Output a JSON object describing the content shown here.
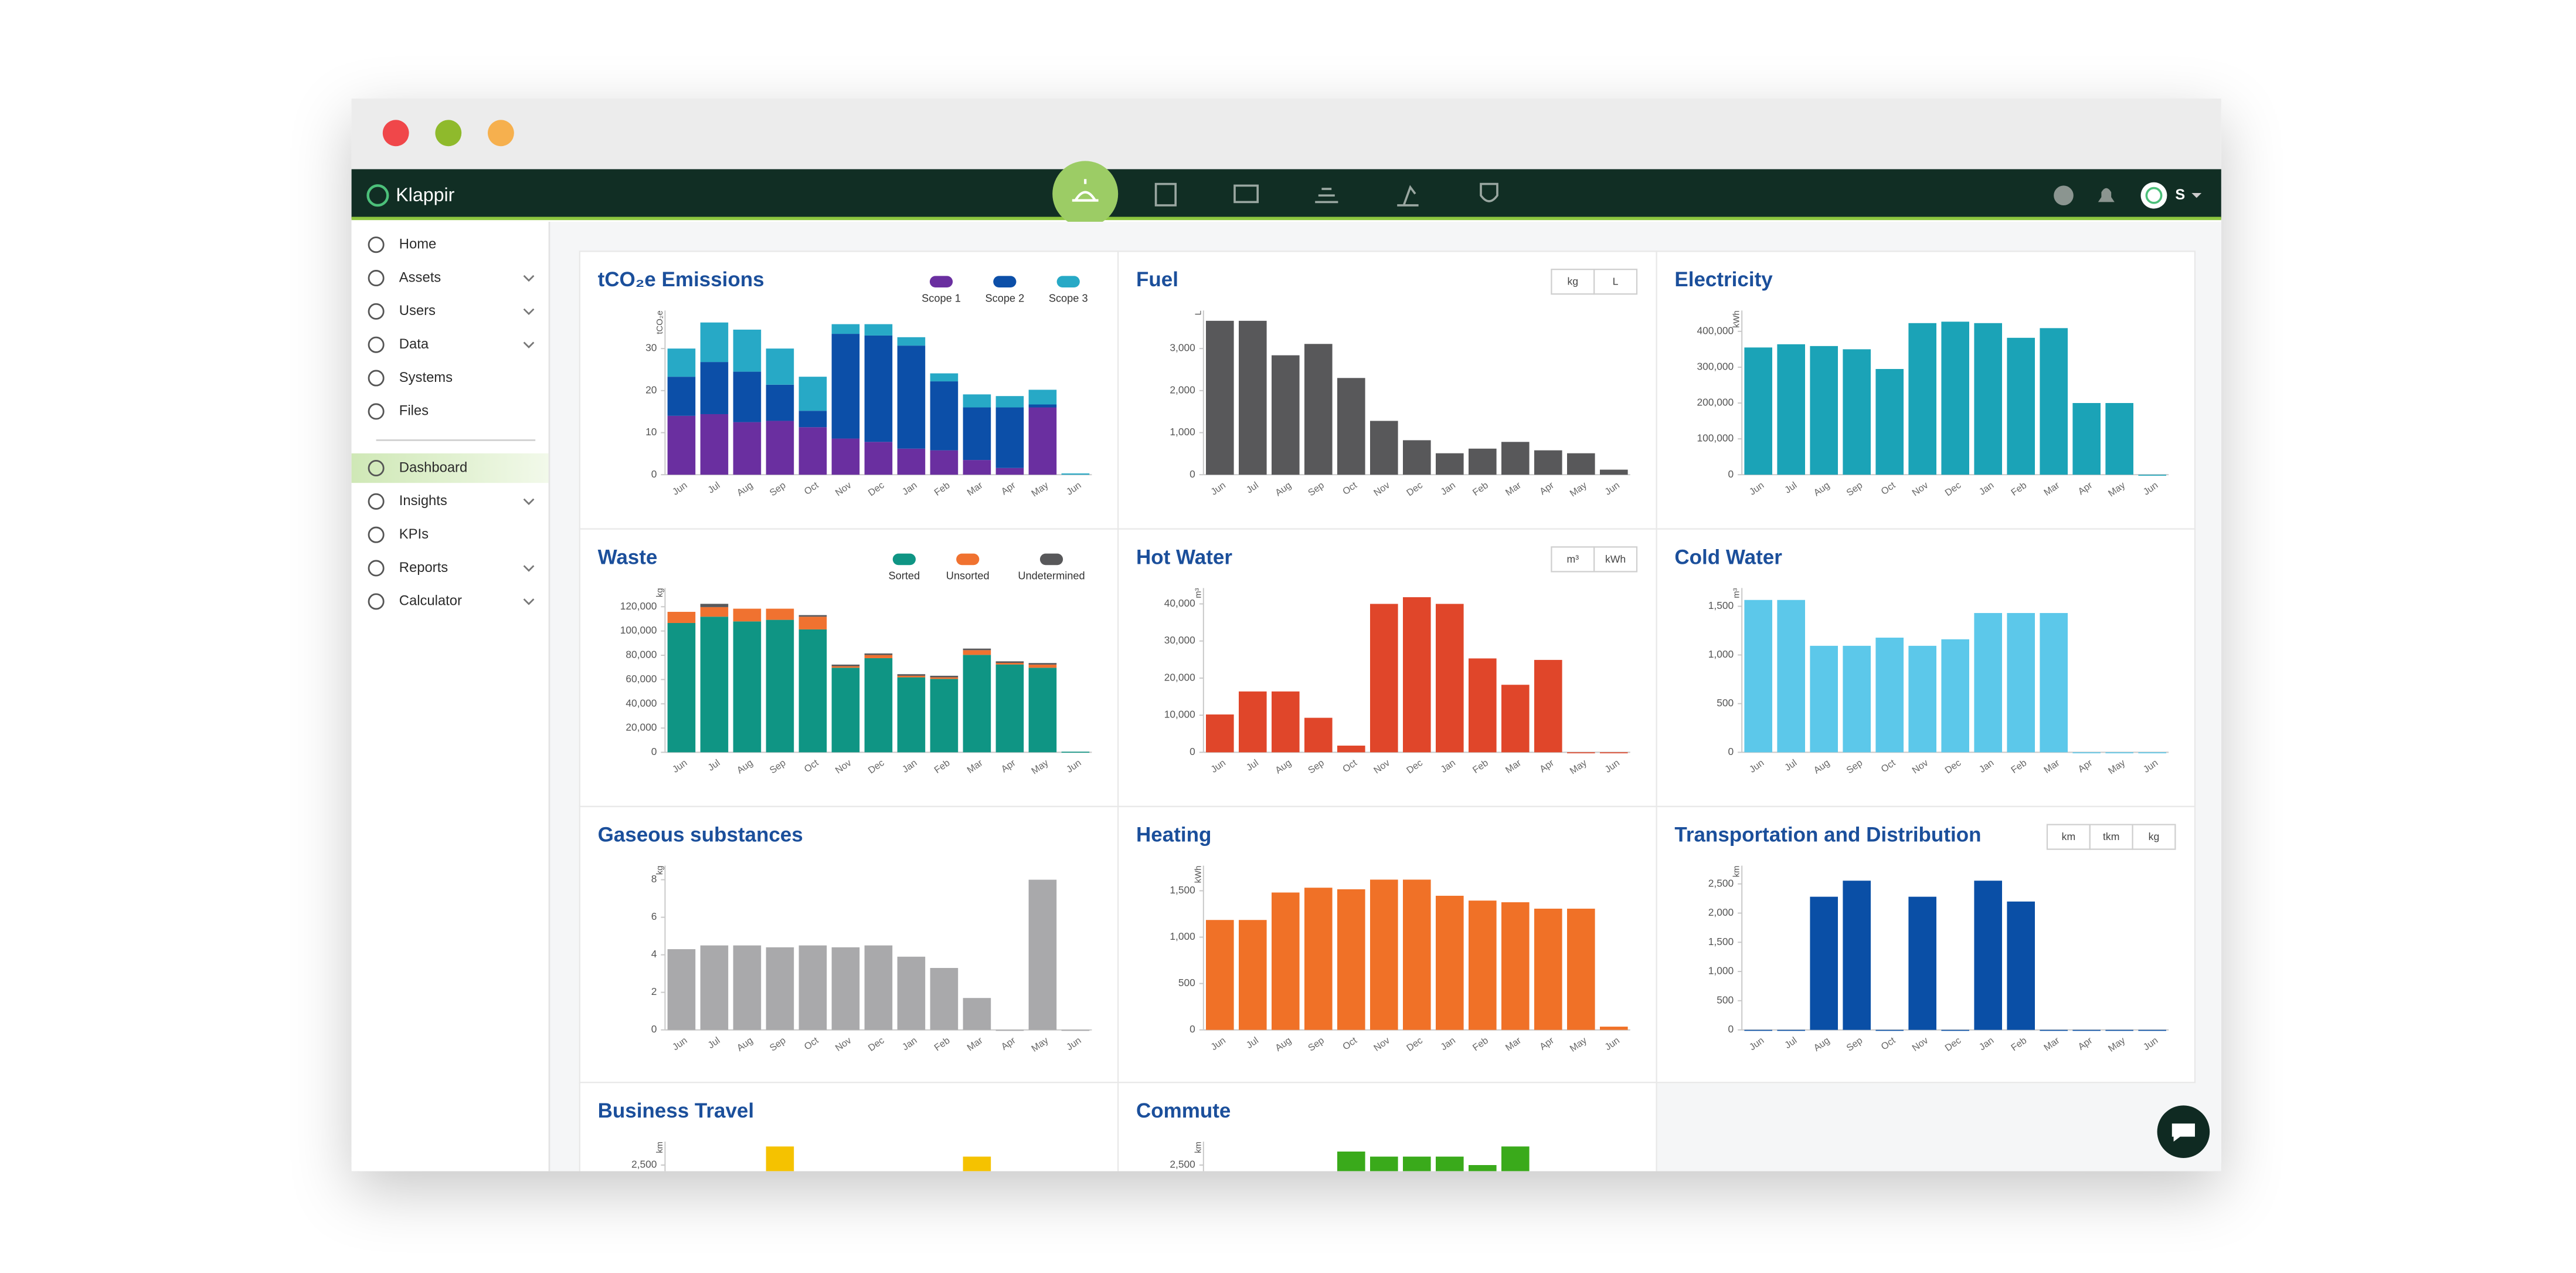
{
  "navbar": {
    "brand": "Klappir",
    "avatar_initial": "S"
  },
  "sidebar": {
    "sections": [
      {
        "items": [
          {
            "label": "Home"
          },
          {
            "label": "Assets",
            "submenu": true
          },
          {
            "label": "Users",
            "submenu": true
          },
          {
            "label": "Data",
            "submenu": true
          },
          {
            "label": "Systems"
          },
          {
            "label": "Files"
          }
        ]
      },
      {
        "items": [
          {
            "label": "Dashboard",
            "active": true
          },
          {
            "label": "Insights",
            "submenu": true
          },
          {
            "label": "KPIs"
          },
          {
            "label": "Reports",
            "submenu": true
          },
          {
            "label": "Calculator",
            "submenu": true
          }
        ]
      }
    ]
  },
  "panels": [
    {
      "title": "tCO₂e Emissions",
      "chart": {
        "type": "stacked-bar",
        "y_label": "tCO₂e",
        "categories": [
          "Jun",
          "Jul",
          "Aug",
          "Sep",
          "Oct",
          "Nov",
          "Dec",
          "Jan",
          "Feb",
          "Mar",
          "Apr",
          "May",
          "Jun"
        ],
        "series": [
          {
            "name": "Scope 1",
            "color": "#6a2fa0",
            "values": [
              14,
              14.4,
              12.5,
              12.8,
              11.3,
              8.6,
              7.8,
              6.2,
              5.8,
              3.5,
              1.6,
              16,
              0
            ]
          },
          {
            "name": "Scope 2",
            "color": "#0c4fa8",
            "values": [
              9.3,
              12.4,
              12,
              8.6,
              3.9,
              24.9,
              25.3,
              24.5,
              16.4,
              12.5,
              14.4,
              0.7,
              0
            ]
          },
          {
            "name": "Scope 3",
            "color": "#27a9c6",
            "values": [
              6.7,
              9.4,
              10,
              8.6,
              8.1,
              2.3,
              2.7,
              2,
              1.9,
              3.1,
              2.7,
              3.5,
              0.3
            ]
          }
        ],
        "ylim": [
          0,
          37.5
        ],
        "yticks": [
          0,
          10,
          20,
          30
        ]
      }
    },
    {
      "title": "Fuel",
      "units": [
        "kg",
        "L"
      ],
      "chart": {
        "type": "bar",
        "y_label": "L",
        "categories": [
          "Jun",
          "Jul",
          "Aug",
          "Sep",
          "Oct",
          "Nov",
          "Dec",
          "Jan",
          "Feb",
          "Mar",
          "Apr",
          "May",
          "Jun"
        ],
        "color": "#58585a",
        "values": [
          3660,
          3660,
          2840,
          3110,
          2300,
          1280,
          820,
          510,
          620,
          780,
          580,
          510,
          120
        ],
        "ylim": [
          0,
          3750
        ],
        "yticks": [
          0,
          {
            "value": 1000,
            "label": "1,000"
          },
          {
            "value": 2000,
            "label": "2,000"
          },
          {
            "value": 3000,
            "label": "3,000"
          }
        ]
      }
    },
    {
      "title": "Electricity",
      "chart": {
        "type": "bar",
        "y_label": "kWh",
        "categories": [
          "Jun",
          "Jul",
          "Aug",
          "Sep",
          "Oct",
          "Nov",
          "Dec",
          "Jan",
          "Feb",
          "Mar",
          "Apr",
          "May",
          "Jun"
        ],
        "color": "#1ba3b7",
        "values": [
          355000,
          364000,
          359000,
          350000,
          295000,
          423000,
          427000,
          423000,
          382000,
          409000,
          200000,
          200000,
          0
        ],
        "ylim": [
          0,
          440000
        ],
        "yticks": [
          0,
          {
            "value": 100000,
            "label": "100,000"
          },
          {
            "value": 200000,
            "label": "200,000"
          },
          {
            "value": 300000,
            "label": "300,000"
          },
          {
            "value": 400000,
            "label": "400,000"
          }
        ]
      }
    },
    {
      "title": "Waste",
      "chart": {
        "type": "stacked-bar",
        "y_label": "kg",
        "categories": [
          "Jun",
          "Jul",
          "Aug",
          "Sep",
          "Oct",
          "Nov",
          "Dec",
          "Jan",
          "Feb",
          "Mar",
          "Apr",
          "May",
          "Jun"
        ],
        "series": [
          {
            "name": "Sorted",
            "color": "#0f9584",
            "values": [
              106600,
              111800,
              107900,
              109200,
              101300,
              69700,
              77600,
              61800,
              60500,
              80300,
              72400,
              69700,
              500
            ]
          },
          {
            "name": "Unsorted",
            "color": "#f07230",
            "values": [
              9200,
              7900,
              10500,
              9200,
              10500,
              1300,
              2600,
              1300,
              1300,
              3900,
              1300,
              2600,
              0
            ]
          },
          {
            "name": "Undetermined",
            "color": "#58585a",
            "values": [
              0,
              2700,
              0,
              0,
              1300,
              1300,
              1300,
              1300,
              1300,
              1300,
              1300,
              1300,
              0
            ]
          }
        ],
        "ylim": [
          0,
          130000
        ],
        "yticks": [
          0,
          {
            "value": 20000,
            "label": "20,000"
          },
          {
            "value": 40000,
            "label": "40,000"
          },
          {
            "value": 60000,
            "label": "60,000"
          },
          {
            "value": 80000,
            "label": "80,000"
          },
          {
            "value": 100000,
            "label": "100,000"
          },
          {
            "value": 120000,
            "label": "120,000"
          }
        ]
      }
    },
    {
      "title": "Hot Water",
      "units": [
        "m³",
        "kWh"
      ],
      "chart": {
        "type": "bar",
        "y_label": "m³",
        "categories": [
          "Jun",
          "Jul",
          "Aug",
          "Sep",
          "Oct",
          "Nov",
          "Dec",
          "Jan",
          "Feb",
          "Mar",
          "Apr",
          "May",
          "Jun"
        ],
        "color": "#e0462a",
        "values": [
          10200,
          16400,
          16400,
          9300,
          1800,
          40000,
          41800,
          40000,
          25300,
          18200,
          24900,
          0,
          0
        ],
        "ylim": [
          0,
          42500
        ],
        "yticks": [
          0,
          {
            "value": 10000,
            "label": "10,000"
          },
          {
            "value": 20000,
            "label": "20,000"
          },
          {
            "value": 30000,
            "label": "30,000"
          },
          {
            "value": 40000,
            "label": "40,000"
          }
        ]
      }
    },
    {
      "title": "Cold Water",
      "chart": {
        "type": "bar",
        "y_label": "m³",
        "categories": [
          "Jun",
          "Jul",
          "Aug",
          "Sep",
          "Oct",
          "Nov",
          "Dec",
          "Jan",
          "Feb",
          "Mar",
          "Apr",
          "May",
          "Jun"
        ],
        "color": "#5cc8ea",
        "values": [
          1565,
          1565,
          1094,
          1094,
          1178,
          1094,
          1161,
          1431,
          1431,
          1431,
          0,
          0,
          0
        ],
        "ylim": [
          0,
          1620
        ],
        "yticks": [
          0,
          500,
          {
            "value": 1000,
            "label": "1,000"
          },
          {
            "value": 1500,
            "label": "1,500"
          }
        ]
      }
    },
    {
      "title": "Gaseous substances",
      "chart": {
        "type": "bar",
        "y_label": "kg",
        "categories": [
          "Jun",
          "Jul",
          "Aug",
          "Sep",
          "Oct",
          "Nov",
          "Dec",
          "Jan",
          "Feb",
          "Mar",
          "Apr",
          "May",
          "Jun"
        ],
        "color": "#a9a9ab",
        "values": [
          4.3,
          4.5,
          4.5,
          4.4,
          4.5,
          4.4,
          4.5,
          3.9,
          3.3,
          1.7,
          0,
          8,
          0
        ],
        "ylim": [
          0,
          8.4
        ],
        "yticks": [
          0,
          2,
          4,
          6,
          8
        ]
      }
    },
    {
      "title": "Heating",
      "chart": {
        "type": "bar",
        "y_label": "kWh",
        "categories": [
          "Jun",
          "Jul",
          "Aug",
          "Sep",
          "Oct",
          "Nov",
          "Dec",
          "Jan",
          "Feb",
          "Mar",
          "Apr",
          "May",
          "Jun"
        ],
        "color": "#f07127",
        "values": [
          1185,
          1185,
          1481,
          1533,
          1516,
          1620,
          1620,
          1446,
          1394,
          1376,
          1307,
          1307,
          35
        ],
        "ylim": [
          0,
          1700
        ],
        "yticks": [
          0,
          500,
          {
            "value": 1000,
            "label": "1,000"
          },
          {
            "value": 1500,
            "label": "1,500"
          }
        ]
      }
    },
    {
      "title": "Transportation and Distribution",
      "units": [
        "km",
        "tkm",
        "kg"
      ],
      "chart": {
        "type": "bar",
        "y_label": "km",
        "categories": [
          "Jun",
          "Jul",
          "Aug",
          "Sep",
          "Oct",
          "Nov",
          "Dec",
          "Jan",
          "Feb",
          "Mar",
          "Apr",
          "May",
          "Jun"
        ],
        "color": "#0a4fa6",
        "values": [
          0,
          0,
          2280,
          2555,
          0,
          2280,
          0,
          2555,
          2198,
          0,
          0,
          0,
          0
        ],
        "ylim": [
          0,
          2700
        ],
        "yticks": [
          0,
          500,
          {
            "value": 1000,
            "label": "1,000"
          },
          {
            "value": 1500,
            "label": "1,500"
          },
          {
            "value": 2000,
            "label": "2,000"
          },
          {
            "value": 2500,
            "label": "2,500"
          }
        ]
      }
    },
    {
      "title": "Business Travel",
      "chart": {
        "type": "bar",
        "y_label": "km",
        "color": "#f5c200",
        "values": [
          null,
          null,
          null,
          2830,
          null,
          null,
          null,
          null,
          null,
          2650,
          null,
          null,
          null
        ],
        "ylim": [
          0,
          2800
        ],
        "yticks": [
          {
            "value": 2500,
            "label": "2,500"
          }
        ]
      }
    },
    {
      "title": "Commute",
      "chart": {
        "type": "bar",
        "y_label": "km",
        "color": "#3aaa1b",
        "values": [
          null,
          null,
          null,
          null,
          2740,
          2650,
          2650,
          2650,
          2500,
          2830,
          null,
          null,
          null
        ],
        "ylim": [
          0,
          2800
        ],
        "yticks": [
          {
            "value": 2500,
            "label": "2,500"
          }
        ]
      }
    }
  ]
}
